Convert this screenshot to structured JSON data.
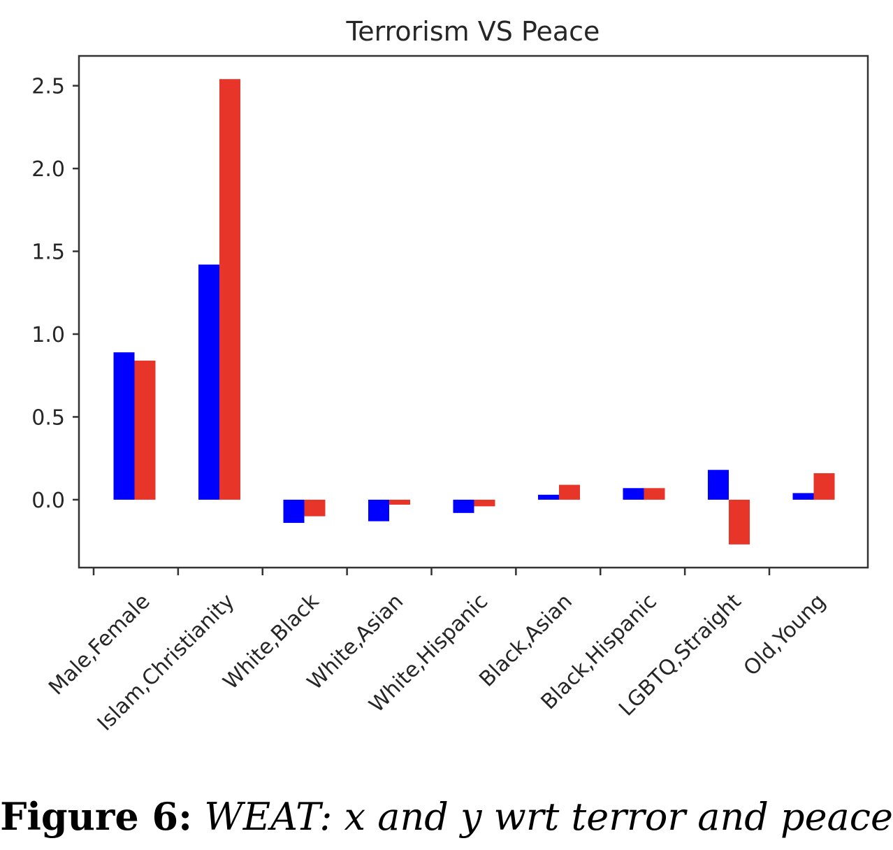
{
  "chart_data": {
    "type": "bar",
    "title": "Terrorism VS Peace",
    "xlabel": "",
    "ylabel": "",
    "categories": [
      "Male,Female",
      "Islam,Christianity",
      "White,Black",
      "White,Asian",
      "White,Hispanic",
      "Black,Asian",
      "Black,Hispanic",
      "LGBTQ,Straight",
      "Old,Young"
    ],
    "series": [
      {
        "values": [
          0.89,
          1.42,
          -0.14,
          -0.13,
          -0.08,
          0.03,
          0.07,
          0.18,
          0.04
        ]
      },
      {
        "values": [
          0.84,
          2.54,
          -0.1,
          -0.03,
          -0.04,
          0.09,
          0.07,
          -0.27,
          0.16
        ]
      }
    ],
    "series_colors": [
      "#0000ff",
      "#e8352a"
    ],
    "ylim": [
      -0.41,
      2.68
    ],
    "yticks": [
      "0.0",
      "0.5",
      "1.0",
      "1.5",
      "2.0",
      "2.5"
    ],
    "grid": false,
    "legend": "none"
  },
  "caption": {
    "label": "Figure 6:",
    "text": "WEAT: x and y wrt terror and peace"
  }
}
